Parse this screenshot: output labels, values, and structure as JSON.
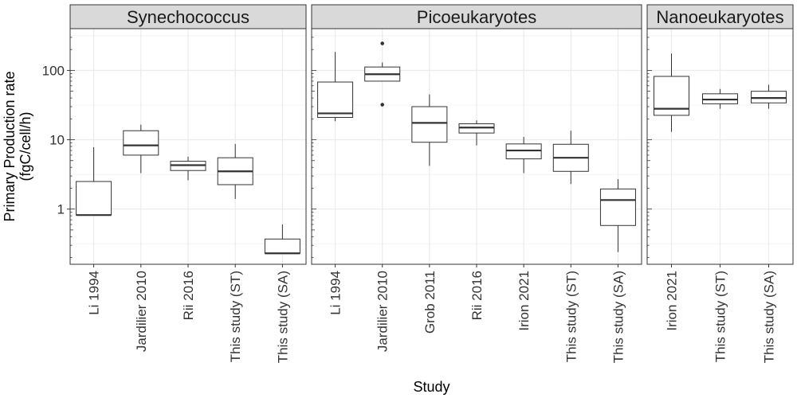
{
  "chart_data": {
    "type": "box",
    "title": "",
    "xlabel": "Study",
    "ylabel": "Primary Production rate",
    "ylabel_units": "(fgC/cell/h)",
    "yscale": "log10",
    "ylim": [
      0.16,
      400
    ],
    "yticks": [
      1,
      10,
      100
    ],
    "ytick_labels": [
      "1",
      "10",
      "100"
    ],
    "grid": true,
    "legend": "none",
    "colors": {
      "strip_fill": "#d9d9d9",
      "strip_border": "#333333",
      "panel_border": "#333333",
      "grid": "#ebebeb",
      "box_line": "#333333",
      "box_fill": "#ffffff"
    },
    "panels": [
      {
        "name": "Synechococcus",
        "boxes": [
          {
            "study": "Li 1994",
            "whisker_low": 0.82,
            "q1": 0.82,
            "median": 0.82,
            "q3": 2.5,
            "whisker_high": 7.8,
            "outliers": []
          },
          {
            "study": "Jardilier 2010",
            "whisker_low": 3.3,
            "q1": 6.0,
            "median": 8.3,
            "q3": 13.5,
            "whisker_high": 16.5,
            "outliers": []
          },
          {
            "study": "Rii 2016",
            "whisker_low": 2.6,
            "q1": 3.6,
            "median": 4.3,
            "q3": 4.9,
            "whisker_high": 5.7,
            "outliers": []
          },
          {
            "study": "This study (ST)",
            "whisker_low": 1.4,
            "q1": 2.25,
            "median": 3.5,
            "q3": 5.5,
            "whisker_high": 8.7,
            "outliers": []
          },
          {
            "study": "This study (SA)",
            "whisker_low": 0.23,
            "q1": 0.23,
            "median": 0.23,
            "q3": 0.37,
            "whisker_high": 0.6,
            "outliers": []
          }
        ]
      },
      {
        "name": "Picoeukaryotes",
        "boxes": [
          {
            "study": "Li 1994",
            "whisker_low": 18.5,
            "q1": 21,
            "median": 24,
            "q3": 68,
            "whisker_high": 185,
            "outliers": []
          },
          {
            "study": "Jardilier 2010",
            "whisker_low": 70,
            "q1": 70,
            "median": 88,
            "q3": 112,
            "whisker_high": 130,
            "outliers": [
              32,
              245
            ]
          },
          {
            "study": "Grob 2011",
            "whisker_low": 4.2,
            "q1": 9.2,
            "median": 17.5,
            "q3": 30,
            "whisker_high": 45,
            "outliers": []
          },
          {
            "study": "Rii 2016",
            "whisker_low": 8.3,
            "q1": 12.5,
            "median": 15,
            "q3": 17,
            "whisker_high": 19,
            "outliers": []
          },
          {
            "study": "Irion 2021",
            "whisker_low": 3.3,
            "q1": 5.3,
            "median": 7.0,
            "q3": 8.7,
            "whisker_high": 11,
            "outliers": []
          },
          {
            "study": "This study (ST)",
            "whisker_low": 2.3,
            "q1": 3.5,
            "median": 5.5,
            "q3": 8.6,
            "whisker_high": 13.5,
            "outliers": []
          },
          {
            "study": "This study (SA)",
            "whisker_low": 0.24,
            "q1": 0.58,
            "median": 1.35,
            "q3": 1.95,
            "whisker_high": 2.7,
            "outliers": []
          }
        ]
      },
      {
        "name": "Nanoeukaryotes",
        "boxes": [
          {
            "study": "Irion 2021",
            "whisker_low": 13,
            "q1": 22.5,
            "median": 28,
            "q3": 82,
            "whisker_high": 175,
            "outliers": []
          },
          {
            "study": "This study (ST)",
            "whisker_low": 28,
            "q1": 33,
            "median": 38,
            "q3": 46,
            "whisker_high": 54,
            "outliers": []
          },
          {
            "study": "This study (SA)",
            "whisker_low": 28,
            "q1": 34,
            "median": 40,
            "q3": 50,
            "whisker_high": 62,
            "outliers": []
          }
        ]
      }
    ]
  }
}
